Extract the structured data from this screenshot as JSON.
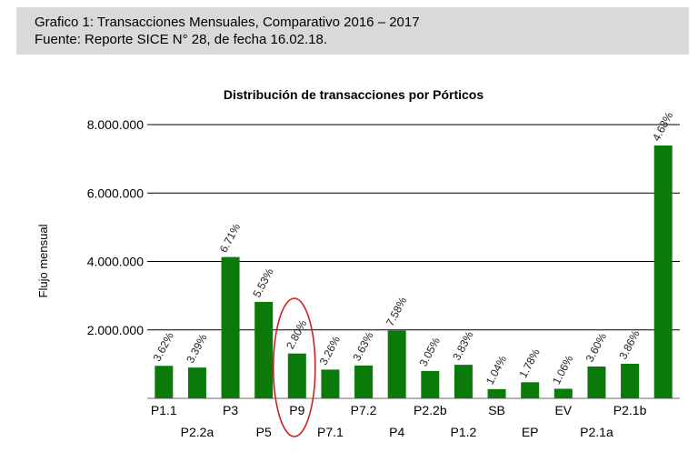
{
  "caption": {
    "line1": "Grafico 1: Transacciones Mensuales, Comparativo 2016 – 2017",
    "line2": "Fuente: Reporte SICE N° 28, de fecha 16.02.18."
  },
  "colors": {
    "bar": "#0b7a0b",
    "grid": "#000000",
    "highlight": "#cc2222",
    "caption_bg": "#d9d9d9"
  },
  "chart_data": {
    "type": "bar",
    "title": "Distribución de transacciones por Pórticos",
    "ylabel": "Flujo mensual",
    "xlabel": "",
    "ylim": [
      0,
      8000000
    ],
    "yticks": [
      2000000,
      4000000,
      6000000,
      8000000
    ],
    "ytick_labels": [
      "2.000.000",
      "4.000.000",
      "6.000.000",
      "8.000.000"
    ],
    "grid": true,
    "categories": [
      "P1.1",
      "P2.2a",
      "P3",
      "P5",
      "P9",
      "P7.1",
      "P7.2",
      "P4",
      "P2.2b",
      "P1.2",
      "SB",
      "EP",
      "EV",
      "P2.1a",
      "P2.1b",
      ""
    ],
    "values": [
      950000,
      900000,
      4130000,
      2820000,
      1310000,
      840000,
      960000,
      1980000,
      800000,
      980000,
      270000,
      470000,
      280000,
      930000,
      1010000,
      7390000
    ],
    "data_labels": [
      "3.62%",
      "3.39%",
      "6.71%",
      "5.53%",
      "2.80%",
      "3.26%",
      "3.63%",
      "7.58%",
      "3.05%",
      "3.83%",
      "1.04%",
      "1.78%",
      "1.06%",
      "3.60%",
      "3.86%",
      "4.68%"
    ],
    "highlighted_category": "P9"
  }
}
